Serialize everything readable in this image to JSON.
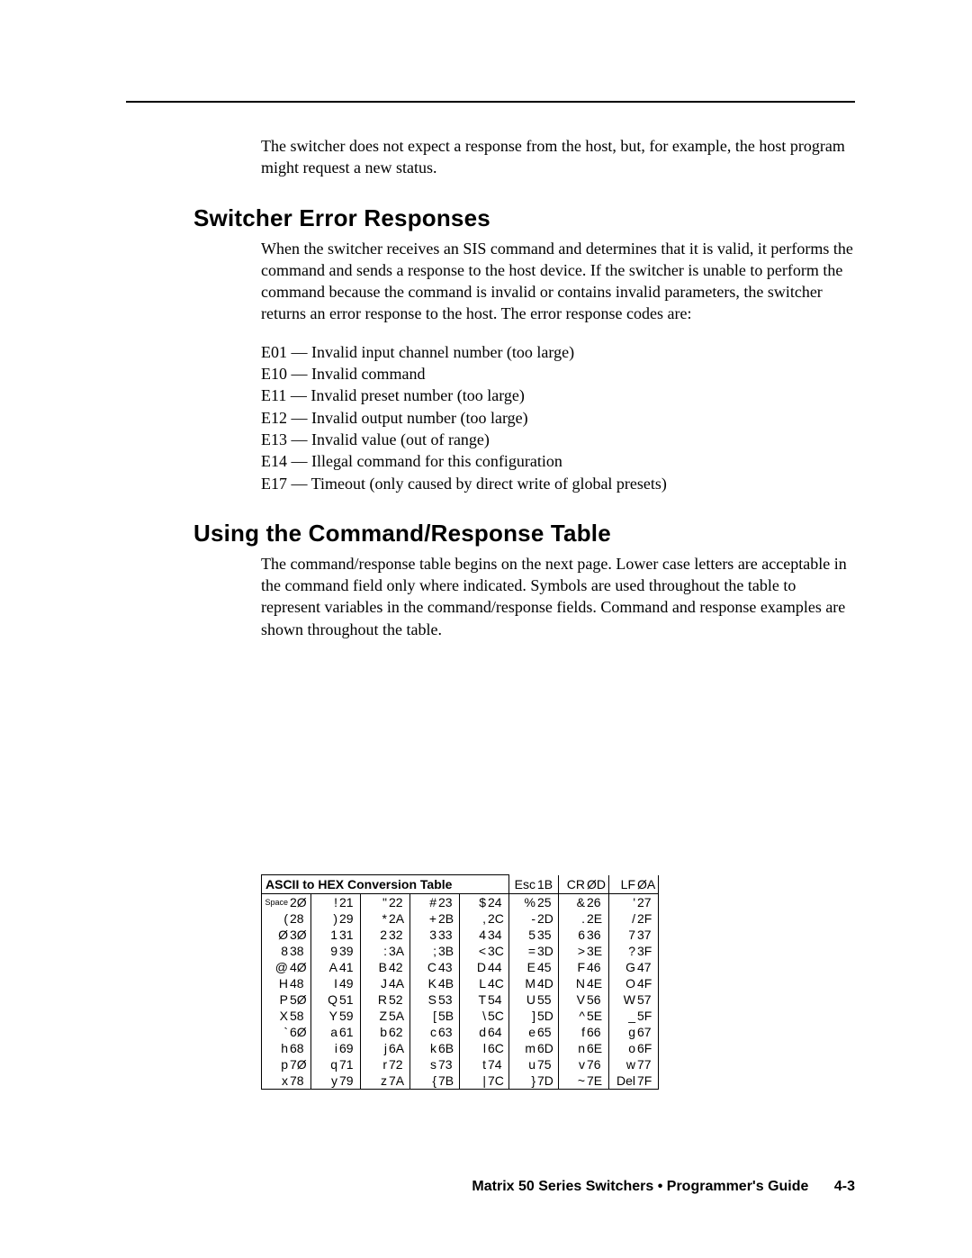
{
  "intro": "The switcher does not expect a response from the host, but, for example, the host program might request a new status.",
  "sections": {
    "error": {
      "heading": "Switcher Error Responses",
      "para": "When the switcher receives an SIS command and determines that it is valid, it performs the command and sends a response to the host device.  If the switcher is unable to perform the command because the command is invalid or contains invalid parameters, the switcher returns an error response to the host.  The error response codes are:",
      "codes": [
        "E01 — Invalid input channel number (too large)",
        "E10 — Invalid command",
        "E11 — Invalid preset number (too large)",
        "E12 — Invalid output number (too large)",
        "E13 — Invalid value (out of range)",
        "E14 — Illegal command for this configuration",
        "E17 — Timeout (only caused by direct write of global presets)"
      ]
    },
    "using": {
      "heading": "Using the Command/Response Table",
      "para": "The command/response table begins on the next page.  Lower case letters are acceptable in the command field only where indicated.  Symbols are used throughout the table to represent variables in the command/response fields.  Command and response examples are shown throughout the table."
    }
  },
  "ascii_table": {
    "title": "ASCII to HEX  Conversion Table",
    "header_extra": [
      {
        "ch": "Esc",
        "hx": "1B"
      },
      {
        "ch": "CR",
        "hx": "ØD"
      },
      {
        "ch": "LF",
        "hx": "ØA"
      }
    ],
    "rows": [
      [
        {
          "ch": "Space",
          "hx": "2Ø"
        },
        {
          "ch": "!",
          "hx": "21"
        },
        {
          "ch": "\"",
          "hx": "22"
        },
        {
          "ch": "#",
          "hx": "23"
        },
        {
          "ch": "$",
          "hx": "24"
        },
        {
          "ch": "%",
          "hx": "25"
        },
        {
          "ch": "&",
          "hx": "26"
        },
        {
          "ch": "'",
          "hx": "27"
        }
      ],
      [
        {
          "ch": "(",
          "hx": "28"
        },
        {
          "ch": ")",
          "hx": "29"
        },
        {
          "ch": "*",
          "hx": "2A"
        },
        {
          "ch": "+",
          "hx": "2B"
        },
        {
          "ch": ",",
          "hx": "2C"
        },
        {
          "ch": "-",
          "hx": "2D"
        },
        {
          "ch": ".",
          "hx": "2E"
        },
        {
          "ch": "/",
          "hx": "2F"
        }
      ],
      [
        {
          "ch": "Ø",
          "hx": "3Ø"
        },
        {
          "ch": "1",
          "hx": "31"
        },
        {
          "ch": "2",
          "hx": "32"
        },
        {
          "ch": "3",
          "hx": "33"
        },
        {
          "ch": "4",
          "hx": "34"
        },
        {
          "ch": "5",
          "hx": "35"
        },
        {
          "ch": "6",
          "hx": "36"
        },
        {
          "ch": "7",
          "hx": "37"
        }
      ],
      [
        {
          "ch": "8",
          "hx": "38"
        },
        {
          "ch": "9",
          "hx": "39"
        },
        {
          "ch": ":",
          "hx": "3A"
        },
        {
          "ch": ";",
          "hx": "3B"
        },
        {
          "ch": "<",
          "hx": "3C"
        },
        {
          "ch": "=",
          "hx": "3D"
        },
        {
          "ch": ">",
          "hx": "3E"
        },
        {
          "ch": "?",
          "hx": "3F"
        }
      ],
      [
        {
          "ch": "@",
          "hx": "4Ø"
        },
        {
          "ch": "A",
          "hx": "41"
        },
        {
          "ch": "B",
          "hx": "42"
        },
        {
          "ch": "C",
          "hx": "43"
        },
        {
          "ch": "D",
          "hx": "44"
        },
        {
          "ch": "E",
          "hx": "45"
        },
        {
          "ch": "F",
          "hx": "46"
        },
        {
          "ch": "G",
          "hx": "47"
        }
      ],
      [
        {
          "ch": "H",
          "hx": "48"
        },
        {
          "ch": "I",
          "hx": "49"
        },
        {
          "ch": "J",
          "hx": "4A"
        },
        {
          "ch": "K",
          "hx": "4B"
        },
        {
          "ch": "L",
          "hx": "4C"
        },
        {
          "ch": "M",
          "hx": "4D"
        },
        {
          "ch": "N",
          "hx": "4E"
        },
        {
          "ch": "O",
          "hx": "4F"
        }
      ],
      [
        {
          "ch": "P",
          "hx": "5Ø"
        },
        {
          "ch": "Q",
          "hx": "51"
        },
        {
          "ch": "R",
          "hx": "52"
        },
        {
          "ch": "S",
          "hx": "53"
        },
        {
          "ch": "T",
          "hx": "54"
        },
        {
          "ch": "U",
          "hx": "55"
        },
        {
          "ch": "V",
          "hx": "56"
        },
        {
          "ch": "W",
          "hx": "57"
        }
      ],
      [
        {
          "ch": "X",
          "hx": "58"
        },
        {
          "ch": "Y",
          "hx": "59"
        },
        {
          "ch": "Z",
          "hx": "5A"
        },
        {
          "ch": "[",
          "hx": "5B"
        },
        {
          "ch": "\\",
          "hx": "5C"
        },
        {
          "ch": "]",
          "hx": "5D"
        },
        {
          "ch": "^",
          "hx": "5E"
        },
        {
          "ch": "_",
          "hx": "5F"
        }
      ],
      [
        {
          "ch": "`",
          "hx": "6Ø"
        },
        {
          "ch": "a",
          "hx": "61"
        },
        {
          "ch": "b",
          "hx": "62"
        },
        {
          "ch": "c",
          "hx": "63"
        },
        {
          "ch": "d",
          "hx": "64"
        },
        {
          "ch": "e",
          "hx": "65"
        },
        {
          "ch": "f",
          "hx": "66"
        },
        {
          "ch": "g",
          "hx": "67"
        }
      ],
      [
        {
          "ch": "h",
          "hx": "68"
        },
        {
          "ch": "i",
          "hx": "69"
        },
        {
          "ch": "j",
          "hx": "6A"
        },
        {
          "ch": "k",
          "hx": "6B"
        },
        {
          "ch": "l",
          "hx": "6C"
        },
        {
          "ch": "m",
          "hx": "6D"
        },
        {
          "ch": "n",
          "hx": "6E"
        },
        {
          "ch": "o",
          "hx": "6F"
        }
      ],
      [
        {
          "ch": "p",
          "hx": "7Ø"
        },
        {
          "ch": "q",
          "hx": "71"
        },
        {
          "ch": "r",
          "hx": "72"
        },
        {
          "ch": "s",
          "hx": "73"
        },
        {
          "ch": "t",
          "hx": "74"
        },
        {
          "ch": "u",
          "hx": "75"
        },
        {
          "ch": "v",
          "hx": "76"
        },
        {
          "ch": "w",
          "hx": "77"
        }
      ],
      [
        {
          "ch": "x",
          "hx": "78"
        },
        {
          "ch": "y",
          "hx": "79"
        },
        {
          "ch": "z",
          "hx": "7A"
        },
        {
          "ch": "{",
          "hx": "7B"
        },
        {
          "ch": "|",
          "hx": "7C"
        },
        {
          "ch": "}",
          "hx": "7D"
        },
        {
          "ch": "~",
          "hx": "7E"
        },
        {
          "ch": "Del",
          "hx": "7F"
        }
      ]
    ]
  },
  "footer": {
    "title": "Matrix 50 Series Switchers • Programmer's Guide",
    "page": "4-3"
  },
  "colors": {
    "text": "#000000",
    "background": "#ffffff",
    "rule": "#000000"
  }
}
